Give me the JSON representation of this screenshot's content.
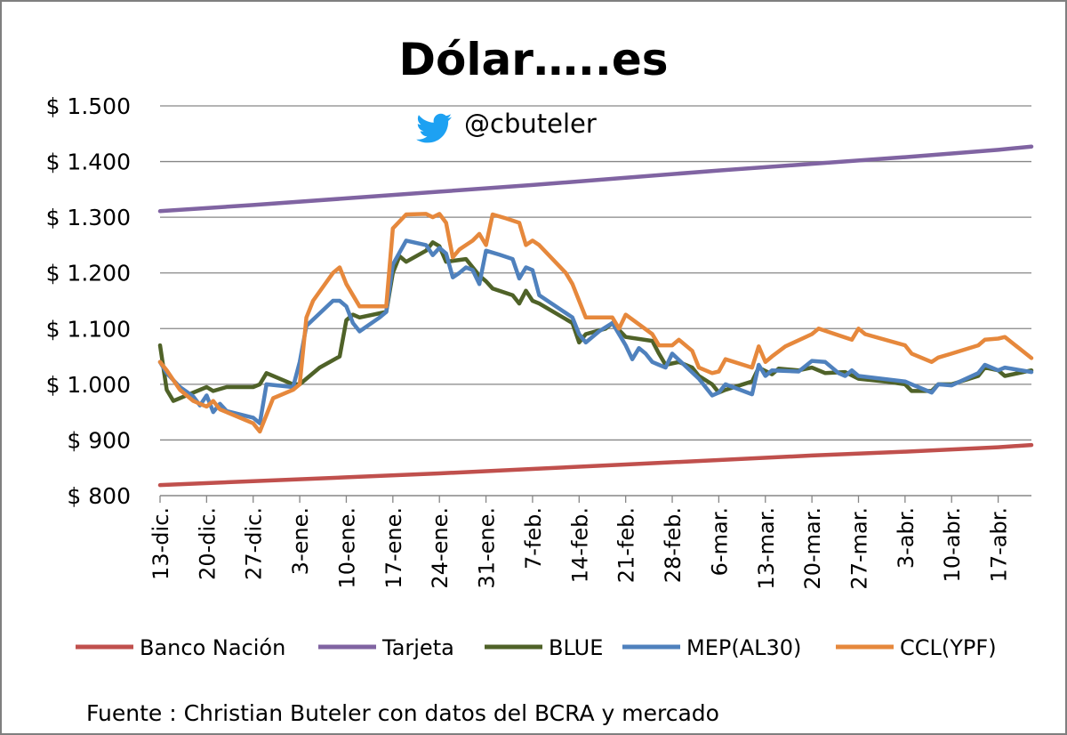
{
  "chart_data": {
    "type": "line",
    "title": "Dólar…..es",
    "handle": "@cbuteler",
    "source": "Fuente : Christian Buteler con datos del BCRA y mercado",
    "y_ticks": [
      "$ 800",
      "$ 900",
      "$ 1.000",
      "$ 1.100",
      "$ 1.200",
      "$ 1.300",
      "$ 1.400",
      "$ 1.500"
    ],
    "y_tick_values": [
      800,
      900,
      1000,
      1100,
      1200,
      1300,
      1400,
      1500
    ],
    "ylim": [
      800,
      1500
    ],
    "x_ticks": [
      "13-dic.",
      "20-dic.",
      "27-dic.",
      "3-ene.",
      "10-ene.",
      "17-ene.",
      "24-ene.",
      "31-ene.",
      "7-feb.",
      "14-feb.",
      "21-feb.",
      "28-feb.",
      "6-mar.",
      "13-mar.",
      "20-mar.",
      "27-mar.",
      "3-abr.",
      "10-abr.",
      "17-abr."
    ],
    "x_tick_days": [
      0,
      7,
      14,
      21,
      28,
      35,
      42,
      49,
      56,
      63,
      70,
      77,
      84,
      91,
      98,
      105,
      112,
      119,
      126
    ],
    "x_range_days": [
      0,
      131
    ],
    "grid": true,
    "legend_position": "bottom",
    "series": [
      {
        "name": "Banco Nación",
        "color": "#c0504d",
        "points": [
          [
            0,
            819
          ],
          [
            14,
            826
          ],
          [
            28,
            833
          ],
          [
            42,
            840
          ],
          [
            56,
            848
          ],
          [
            70,
            856
          ],
          [
            84,
            864
          ],
          [
            98,
            872
          ],
          [
            112,
            879
          ],
          [
            126,
            887
          ],
          [
            131,
            891
          ]
        ]
      },
      {
        "name": "Tarjeta",
        "color": "#8064a2",
        "points": [
          [
            0,
            1311
          ],
          [
            14,
            1322
          ],
          [
            28,
            1334
          ],
          [
            42,
            1346
          ],
          [
            56,
            1358
          ],
          [
            70,
            1371
          ],
          [
            84,
            1384
          ],
          [
            98,
            1396
          ],
          [
            112,
            1408
          ],
          [
            126,
            1421
          ],
          [
            131,
            1427
          ]
        ]
      },
      {
        "name": "BLUE",
        "color": "#4f6228",
        "points": [
          [
            0,
            1070
          ],
          [
            1,
            990
          ],
          [
            2,
            970
          ],
          [
            5,
            985
          ],
          [
            7,
            995
          ],
          [
            8,
            988
          ],
          [
            10,
            995
          ],
          [
            14,
            995
          ],
          [
            15,
            1000
          ],
          [
            16,
            1020
          ],
          [
            20,
            1000
          ],
          [
            21,
            1000
          ],
          [
            24,
            1030
          ],
          [
            27,
            1050
          ],
          [
            28,
            1115
          ],
          [
            29,
            1125
          ],
          [
            30,
            1120
          ],
          [
            34,
            1130
          ],
          [
            35,
            1200
          ],
          [
            36,
            1230
          ],
          [
            37,
            1220
          ],
          [
            40,
            1240
          ],
          [
            41,
            1255
          ],
          [
            42,
            1248
          ],
          [
            43,
            1220
          ],
          [
            46,
            1225
          ],
          [
            48,
            1195
          ],
          [
            49,
            1185
          ],
          [
            50,
            1172
          ],
          [
            53,
            1160
          ],
          [
            54,
            1145
          ],
          [
            55,
            1168
          ],
          [
            56,
            1150
          ],
          [
            57,
            1145
          ],
          [
            62,
            1110
          ],
          [
            63,
            1075
          ],
          [
            64,
            1090
          ],
          [
            67,
            1100
          ],
          [
            68,
            1110
          ],
          [
            70,
            1085
          ],
          [
            74,
            1078
          ],
          [
            75,
            1055
          ],
          [
            76,
            1035
          ],
          [
            78,
            1040
          ],
          [
            80,
            1030
          ],
          [
            81,
            1015
          ],
          [
            83,
            1000
          ],
          [
            84,
            985
          ],
          [
            85,
            990
          ],
          [
            89,
            1005
          ],
          [
            90,
            1030
          ],
          [
            92,
            1018
          ],
          [
            93,
            1028
          ],
          [
            96,
            1025
          ],
          [
            98,
            1030
          ],
          [
            100,
            1020
          ],
          [
            103,
            1022
          ],
          [
            105,
            1010
          ],
          [
            109,
            1005
          ],
          [
            112,
            1000
          ],
          [
            113,
            988
          ],
          [
            116,
            988
          ],
          [
            117,
            1000
          ],
          [
            119,
            1000
          ],
          [
            123,
            1015
          ],
          [
            124,
            1030
          ],
          [
            126,
            1025
          ],
          [
            127,
            1015
          ],
          [
            131,
            1025
          ]
        ]
      },
      {
        "name": "MEP(AL30)",
        "color": "#4f81bd",
        "points": [
          [
            0,
            1040
          ],
          [
            1,
            1020
          ],
          [
            3,
            995
          ],
          [
            5,
            978
          ],
          [
            6,
            962
          ],
          [
            7,
            980
          ],
          [
            8,
            950
          ],
          [
            9,
            965
          ],
          [
            10,
            952
          ],
          [
            14,
            940
          ],
          [
            15,
            930
          ],
          [
            16,
            1000
          ],
          [
            20,
            995
          ],
          [
            21,
            1040
          ],
          [
            22,
            1105
          ],
          [
            26,
            1150
          ],
          [
            27,
            1150
          ],
          [
            28,
            1140
          ],
          [
            29,
            1110
          ],
          [
            30,
            1095
          ],
          [
            33,
            1120
          ],
          [
            34,
            1130
          ],
          [
            35,
            1215
          ],
          [
            37,
            1258
          ],
          [
            40,
            1250
          ],
          [
            41,
            1232
          ],
          [
            42,
            1245
          ],
          [
            43,
            1235
          ],
          [
            44,
            1192
          ],
          [
            45,
            1200
          ],
          [
            46,
            1210
          ],
          [
            47,
            1205
          ],
          [
            48,
            1180
          ],
          [
            49,
            1240
          ],
          [
            51,
            1233
          ],
          [
            53,
            1225
          ],
          [
            54,
            1190
          ],
          [
            55,
            1210
          ],
          [
            56,
            1205
          ],
          [
            57,
            1160
          ],
          [
            62,
            1120
          ],
          [
            63,
            1090
          ],
          [
            64,
            1075
          ],
          [
            66,
            1095
          ],
          [
            68,
            1110
          ],
          [
            70,
            1070
          ],
          [
            71,
            1045
          ],
          [
            72,
            1065
          ],
          [
            73,
            1055
          ],
          [
            74,
            1040
          ],
          [
            75,
            1035
          ],
          [
            76,
            1030
          ],
          [
            77,
            1055
          ],
          [
            81,
            1010
          ],
          [
            83,
            980
          ],
          [
            84,
            985
          ],
          [
            85,
            1000
          ],
          [
            89,
            982
          ],
          [
            90,
            1035
          ],
          [
            91,
            1015
          ],
          [
            92,
            1025
          ],
          [
            96,
            1023
          ],
          [
            98,
            1042
          ],
          [
            100,
            1040
          ],
          [
            102,
            1020
          ],
          [
            103,
            1015
          ],
          [
            104,
            1025
          ],
          [
            105,
            1015
          ],
          [
            112,
            1005
          ],
          [
            113,
            1000
          ],
          [
            116,
            985
          ],
          [
            117,
            1000
          ],
          [
            119,
            998
          ],
          [
            123,
            1020
          ],
          [
            124,
            1035
          ],
          [
            126,
            1025
          ],
          [
            127,
            1030
          ],
          [
            131,
            1022
          ]
        ]
      },
      {
        "name": "CCL(YPF)",
        "color": "#e6883c",
        "points": [
          [
            0,
            1040
          ],
          [
            1,
            1025
          ],
          [
            3,
            990
          ],
          [
            5,
            970
          ],
          [
            6,
            965
          ],
          [
            7,
            960
          ],
          [
            8,
            970
          ],
          [
            9,
            955
          ],
          [
            14,
            930
          ],
          [
            15,
            915
          ],
          [
            17,
            975
          ],
          [
            20,
            990
          ],
          [
            21,
            1000
          ],
          [
            22,
            1120
          ],
          [
            23,
            1150
          ],
          [
            26,
            1200
          ],
          [
            27,
            1210
          ],
          [
            28,
            1180
          ],
          [
            29,
            1160
          ],
          [
            30,
            1140
          ],
          [
            34,
            1140
          ],
          [
            35,
            1280
          ],
          [
            37,
            1305
          ],
          [
            40,
            1306
          ],
          [
            41,
            1300
          ],
          [
            42,
            1306
          ],
          [
            43,
            1290
          ],
          [
            44,
            1228
          ],
          [
            45,
            1242
          ],
          [
            46,
            1250
          ],
          [
            47,
            1258
          ],
          [
            48,
            1270
          ],
          [
            49,
            1250
          ],
          [
            50,
            1305
          ],
          [
            52,
            1298
          ],
          [
            54,
            1290
          ],
          [
            55,
            1250
          ],
          [
            56,
            1258
          ],
          [
            57,
            1250
          ],
          [
            61,
            1200
          ],
          [
            62,
            1180
          ],
          [
            63,
            1150
          ],
          [
            64,
            1120
          ],
          [
            67,
            1120
          ],
          [
            68,
            1120
          ],
          [
            69,
            1100
          ],
          [
            70,
            1125
          ],
          [
            74,
            1090
          ],
          [
            75,
            1070
          ],
          [
            77,
            1070
          ],
          [
            78,
            1080
          ],
          [
            80,
            1060
          ],
          [
            81,
            1030
          ],
          [
            83,
            1020
          ],
          [
            84,
            1023
          ],
          [
            85,
            1045
          ],
          [
            89,
            1030
          ],
          [
            90,
            1068
          ],
          [
            91,
            1040
          ],
          [
            92,
            1050
          ],
          [
            94,
            1068
          ],
          [
            98,
            1090
          ],
          [
            99,
            1100
          ],
          [
            104,
            1080
          ],
          [
            105,
            1100
          ],
          [
            106,
            1090
          ],
          [
            112,
            1070
          ],
          [
            113,
            1055
          ],
          [
            116,
            1040
          ],
          [
            117,
            1048
          ],
          [
            119,
            1055
          ],
          [
            123,
            1070
          ],
          [
            124,
            1080
          ],
          [
            126,
            1082
          ],
          [
            127,
            1085
          ],
          [
            131,
            1047
          ]
        ]
      }
    ]
  }
}
